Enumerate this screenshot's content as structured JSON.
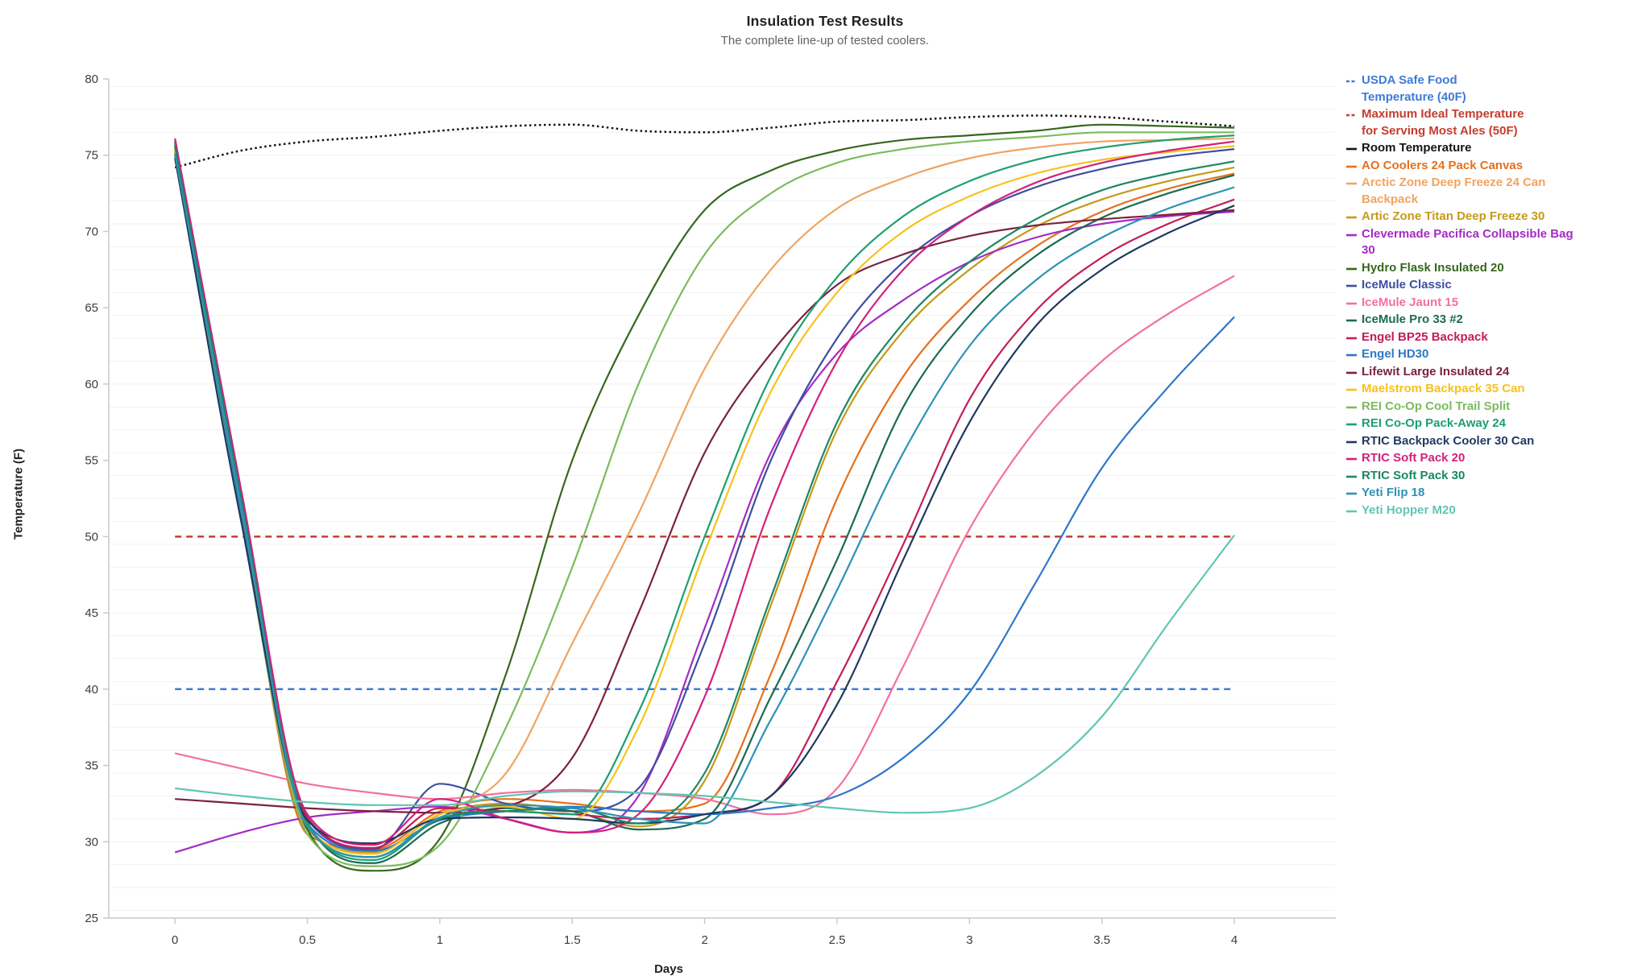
{
  "chart_data": {
    "type": "line",
    "title": "Insulation Test Results",
    "subtitle": "The complete line-up of tested coolers.",
    "xlabel": "Days",
    "ylabel": "Temperature (F)",
    "xlim": [
      -0.25,
      4.383
    ],
    "ylim": [
      25,
      80
    ],
    "x_ticks": [
      0,
      0.5,
      1,
      1.5,
      2,
      2.5,
      3,
      3.5,
      4
    ],
    "y_ticks": [
      25,
      30,
      35,
      40,
      45,
      50,
      55,
      60,
      65,
      70,
      75,
      80
    ],
    "grid": "horizontal",
    "legend_position": "right",
    "x": [
      0,
      0.25,
      0.5,
      0.75,
      1,
      1.25,
      1.5,
      1.75,
      2,
      2.25,
      2.5,
      2.75,
      3,
      3.25,
      3.5,
      3.75,
      4
    ],
    "series": [
      {
        "name": "USDA Safe Food\nTemperature (40F)",
        "color": "#3E7BD6",
        "dash": "dashed",
        "values": [
          40,
          40,
          40,
          40,
          40,
          40,
          40,
          40,
          40,
          40,
          40,
          40,
          40,
          40,
          40,
          40,
          40
        ]
      },
      {
        "name": "Maximum Ideal Temperature\nfor Serving Most Ales (50F)",
        "color": "#C33D2E",
        "dash": "dashed",
        "values": [
          50,
          50,
          50,
          50,
          50,
          50,
          50,
          50,
          50,
          50,
          50,
          50,
          50,
          50,
          50,
          50,
          50
        ]
      },
      {
        "name": "Room Temperature",
        "color": "#141414",
        "dash": "dotted",
        "values": [
          74.2,
          75.3,
          75.9,
          76.2,
          76.6,
          76.9,
          77.0,
          76.6,
          76.5,
          76.8,
          77.2,
          77.3,
          77.5,
          77.6,
          77.5,
          77.2,
          76.9
        ]
      },
      {
        "name": "AO Coolers 24 Pack Canvas",
        "color": "#E4711E",
        "dash": "solid",
        "values": [
          75.0,
          51.5,
          30.5,
          29.5,
          32.0,
          32.8,
          32.5,
          32.0,
          32.5,
          41.0,
          52.5,
          60.5,
          65.5,
          69.0,
          71.3,
          72.8,
          73.8
        ]
      },
      {
        "name": "Arctic Zone Deep Freeze 24 Can\nBackpack",
        "color": "#F0A461",
        "dash": "solid",
        "values": [
          75.5,
          52.0,
          31.0,
          29.0,
          31.8,
          34.5,
          43.0,
          51.5,
          61.0,
          67.5,
          71.5,
          73.5,
          74.8,
          75.5,
          75.9,
          76.0,
          76.1
        ]
      },
      {
        "name": "Artic Zone Titan Deep Freeze 30",
        "color": "#C59A18",
        "dash": "solid",
        "values": [
          75.4,
          52.0,
          30.8,
          29.3,
          31.8,
          32.5,
          32.0,
          31.0,
          34.0,
          45.5,
          57.0,
          63.5,
          67.5,
          70.3,
          72.1,
          73.3,
          74.2
        ]
      },
      {
        "name": "Clevermade Pacifica Collapsible Bag\n30",
        "color": "#A32CC4",
        "dash": "solid",
        "values": [
          29.3,
          30.6,
          31.6,
          32.0,
          32.3,
          31.5,
          30.6,
          33.0,
          44.0,
          55.5,
          62.0,
          65.5,
          68.0,
          69.6,
          70.5,
          71.0,
          71.3
        ]
      },
      {
        "name": "Hydro Flask Insulated 20",
        "color": "#36681D",
        "dash": "solid",
        "values": [
          75.2,
          52.0,
          30.8,
          28.1,
          30.2,
          41.0,
          55.0,
          64.5,
          71.4,
          74.0,
          75.3,
          76.0,
          76.3,
          76.6,
          77.0,
          76.9,
          76.8
        ]
      },
      {
        "name": "IceMule Classic",
        "color": "#3D4FA1",
        "dash": "solid",
        "values": [
          75.9,
          53.0,
          31.5,
          29.5,
          33.8,
          32.5,
          32.0,
          33.5,
          43.0,
          55.0,
          63.0,
          68.0,
          71.0,
          72.9,
          74.1,
          74.9,
          75.4
        ]
      },
      {
        "name": "IceMule Jaunt 15",
        "color": "#F2719F",
        "dash": "solid",
        "values": [
          35.8,
          34.8,
          33.8,
          33.2,
          32.8,
          33.2,
          33.4,
          33.2,
          32.8,
          31.8,
          33.5,
          41.5,
          50.5,
          57.0,
          61.5,
          64.6,
          67.1
        ]
      },
      {
        "name": "IceMule Pro 33 #2",
        "color": "#1A6B51",
        "dash": "solid",
        "values": [
          75.7,
          52.5,
          31.3,
          28.6,
          31.2,
          32.2,
          32.0,
          30.8,
          31.5,
          39.5,
          48.5,
          58.5,
          64.5,
          68.4,
          70.9,
          72.5,
          73.7
        ]
      },
      {
        "name": "Engel BP25 Backpack",
        "color": "#C21E59",
        "dash": "solid",
        "values": [
          75.8,
          53.0,
          31.6,
          29.6,
          32.2,
          32.0,
          31.8,
          31.5,
          31.8,
          33.0,
          40.5,
          49.5,
          59.0,
          64.8,
          68.3,
          70.5,
          72.1
        ]
      },
      {
        "name": "Engel HD30",
        "color": "#2E77C8",
        "dash": "solid",
        "values": [
          74.9,
          51.5,
          31.2,
          29.4,
          31.4,
          32.0,
          32.3,
          32.0,
          31.8,
          32.2,
          33.0,
          35.5,
          39.8,
          47.0,
          54.5,
          59.8,
          64.4
        ]
      },
      {
        "name": "Lifewit Large Insulated 24",
        "color": "#7B2240",
        "dash": "solid",
        "values": [
          32.8,
          32.5,
          32.2,
          32.0,
          31.9,
          32.3,
          35.5,
          45.0,
          55.5,
          62.0,
          66.5,
          68.5,
          69.7,
          70.4,
          70.8,
          71.1,
          71.4
        ]
      },
      {
        "name": "Maelstrom Backpack 35 Can",
        "color": "#F6C21F",
        "dash": "solid",
        "values": [
          75.3,
          52.0,
          31.0,
          29.2,
          31.8,
          32.3,
          31.5,
          37.5,
          49.0,
          59.5,
          66.0,
          70.0,
          72.3,
          73.8,
          74.7,
          75.2,
          75.6
        ]
      },
      {
        "name": "REI Co-Op Cool Trail Split",
        "color": "#7CBB5E",
        "dash": "solid",
        "values": [
          75.0,
          51.0,
          30.5,
          28.4,
          29.8,
          37.5,
          48.0,
          60.0,
          68.5,
          72.5,
          74.5,
          75.4,
          75.9,
          76.2,
          76.5,
          76.5,
          76.5
        ]
      },
      {
        "name": "REI Co-Op Pack-Away 24",
        "color": "#1D9F70",
        "dash": "solid",
        "values": [
          75.8,
          52.5,
          31.2,
          28.8,
          31.5,
          32.0,
          31.8,
          38.5,
          50.0,
          60.5,
          67.0,
          71.0,
          73.3,
          74.7,
          75.5,
          76.0,
          76.3
        ]
      },
      {
        "name": "RTIC Backpack Cooler 30 Can",
        "color": "#1E3A5F",
        "dash": "solid",
        "values": [
          74.8,
          51.0,
          31.4,
          29.9,
          31.5,
          31.6,
          31.5,
          31.2,
          31.8,
          33.0,
          39.0,
          48.5,
          57.5,
          63.8,
          67.5,
          69.9,
          71.7
        ]
      },
      {
        "name": "RTIC Soft Pack 20",
        "color": "#D4207C",
        "dash": "solid",
        "values": [
          76.1,
          53.0,
          31.8,
          29.8,
          32.8,
          31.5,
          30.6,
          31.8,
          39.5,
          52.0,
          61.5,
          67.5,
          71.0,
          73.2,
          74.5,
          75.3,
          75.9
        ]
      },
      {
        "name": "RTIC Soft Pack 30",
        "color": "#1B8666",
        "dash": "solid",
        "values": [
          75.6,
          52.5,
          31.0,
          29.0,
          31.5,
          32.0,
          32.2,
          31.2,
          34.5,
          46.0,
          57.5,
          64.0,
          68.0,
          70.8,
          72.7,
          73.8,
          74.6
        ]
      },
      {
        "name": "Yeti Flip 18",
        "color": "#2D93B4",
        "dash": "solid",
        "values": [
          75.1,
          52.0,
          31.0,
          29.0,
          31.6,
          32.4,
          32.2,
          31.5,
          31.2,
          38.0,
          46.5,
          55.5,
          62.5,
          66.8,
          69.6,
          71.5,
          72.9
        ]
      },
      {
        "name": "Yeti Hopper M20",
        "color": "#5FC6B2",
        "dash": "solid",
        "values": [
          33.5,
          33.0,
          32.6,
          32.4,
          32.4,
          33.0,
          33.3,
          33.2,
          33.0,
          32.6,
          32.2,
          31.9,
          32.2,
          34.3,
          38.2,
          44.3,
          50.1
        ]
      }
    ]
  }
}
